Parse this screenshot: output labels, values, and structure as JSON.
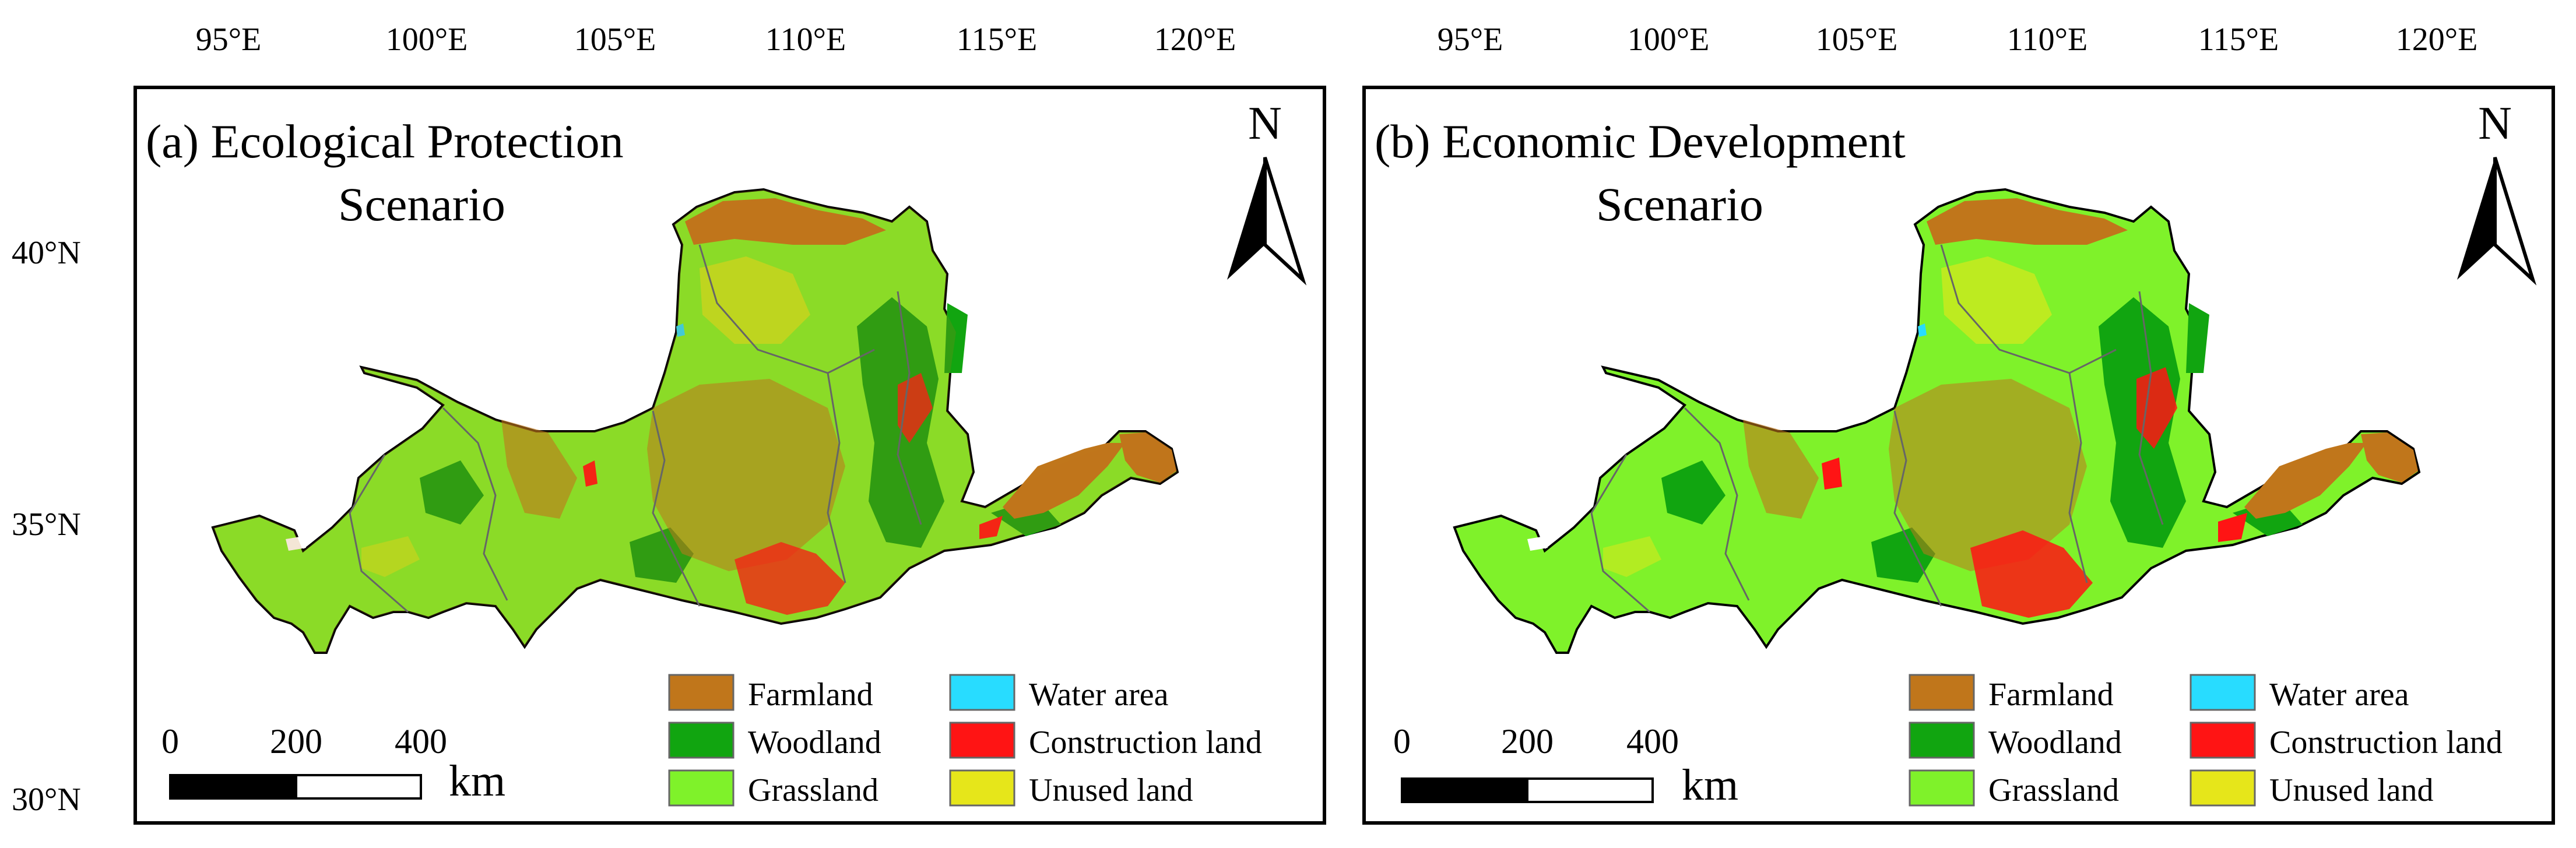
{
  "panels": [
    {
      "id": "a",
      "title_line1": "(a) Ecological Protection",
      "title_line2": "Scenario",
      "lon_ticks": [
        "95°E",
        "100°E",
        "105°E",
        "110°E",
        "115°E",
        "120°E"
      ],
      "lat_ticks": [
        "40°N",
        "35°N",
        "30°N"
      ],
      "north_label": "N",
      "scale_labels": [
        "0",
        "200",
        "400"
      ],
      "scale_unit": "km"
    },
    {
      "id": "b",
      "title_line1": "(b) Economic Development",
      "title_line2": "Scenario",
      "lon_ticks": [
        "95°E",
        "100°E",
        "105°E",
        "110°E",
        "115°E",
        "120°E"
      ],
      "lat_ticks": [],
      "north_label": "N",
      "scale_labels": [
        "0",
        "200",
        "400"
      ],
      "scale_unit": "km"
    }
  ],
  "legend": [
    {
      "label": "Farmland",
      "color": "#c0761b"
    },
    {
      "label": "Woodland",
      "color": "#11a510"
    },
    {
      "label": "Grassland",
      "color": "#7ff22a"
    },
    {
      "label": "Water area",
      "color": "#28dcff"
    },
    {
      "label": "Construction land",
      "color": "#ff1414"
    },
    {
      "label": "Unused land",
      "color": "#e6e61a"
    }
  ],
  "colors": {
    "farmland": "#c0761b",
    "woodland": "#11a510",
    "grassland": "#7ff22a",
    "water": "#28dcff",
    "construction": "#ff1414",
    "unused": "#e6e61a",
    "boundary": "#000000",
    "subbasin": "#666666"
  }
}
